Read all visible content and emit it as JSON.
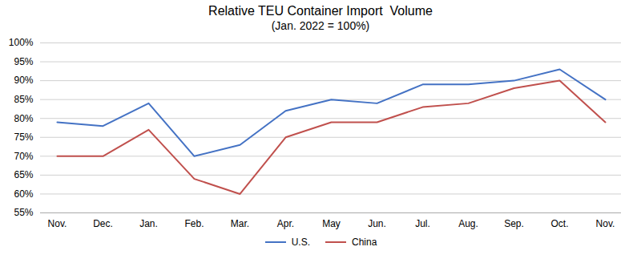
{
  "chart_data": {
    "type": "line",
    "title": "Relative TEU Container Import  Volume",
    "subtitle": "(Jan. 2022 = 100%)",
    "categories": [
      "Nov.",
      "Dec.",
      "Jan.",
      "Feb.",
      "Mar.",
      "Apr.",
      "May",
      "Jun.",
      "Jul.",
      "Aug.",
      "Sep.",
      "Oct.",
      "Nov."
    ],
    "series": [
      {
        "name": "U.S.",
        "color": "#4472C4",
        "values": [
          79,
          78,
          84,
          70,
          73,
          82,
          85,
          84,
          89,
          89,
          90,
          93,
          85
        ]
      },
      {
        "name": "China",
        "color": "#C0504D",
        "values": [
          70,
          70,
          77,
          64,
          60,
          75,
          79,
          79,
          83,
          84,
          88,
          90,
          79
        ]
      }
    ],
    "ylim": [
      55,
      100
    ],
    "yticks": [
      {
        "value": 55,
        "label": "55%"
      },
      {
        "value": 60,
        "label": "60%"
      },
      {
        "value": 65,
        "label": "65%"
      },
      {
        "value": 70,
        "label": "70%"
      },
      {
        "value": 75,
        "label": "75%"
      },
      {
        "value": 80,
        "label": "80%"
      },
      {
        "value": 85,
        "label": "85%"
      },
      {
        "value": 90,
        "label": "90%"
      },
      {
        "value": 95,
        "label": "95%"
      },
      {
        "value": 100,
        "label": "100%"
      }
    ],
    "grid": true,
    "legend": "bottom"
  }
}
